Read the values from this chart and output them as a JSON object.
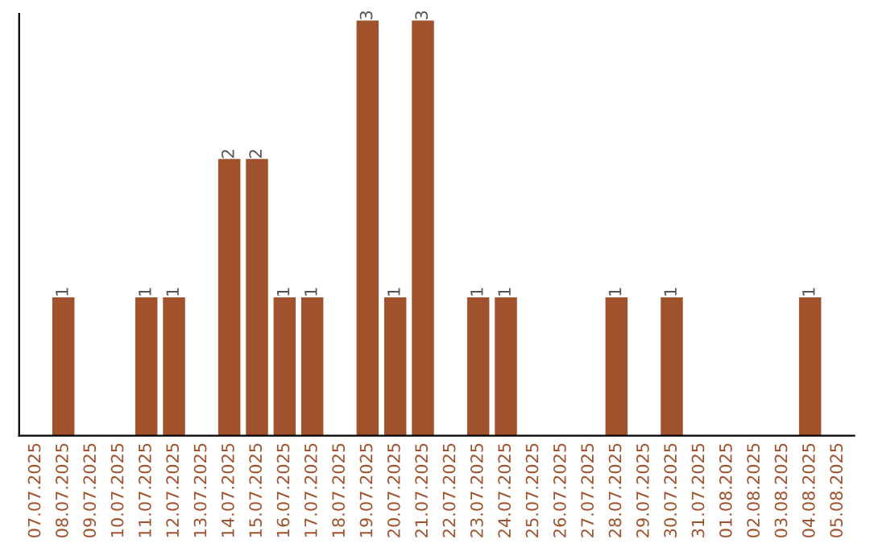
{
  "chart_data": {
    "type": "bar",
    "categories": [
      "07.07.2025",
      "08.07.2025",
      "09.07.2025",
      "10.07.2025",
      "11.07.2025",
      "12.07.2025",
      "13.07.2025",
      "14.07.2025",
      "15.07.2025",
      "16.07.2025",
      "17.07.2025",
      "18.07.2025",
      "19.07.2025",
      "20.07.2025",
      "21.07.2025",
      "22.07.2025",
      "23.07.2025",
      "24.07.2025",
      "25.07.2025",
      "26.07.2025",
      "27.07.2025",
      "28.07.2025",
      "29.07.2025",
      "30.07.2025",
      "31.07.2025",
      "01.08.2025",
      "02.08.2025",
      "03.08.2025",
      "04.08.2025",
      "05.08.2025"
    ],
    "values": [
      null,
      1,
      null,
      null,
      1,
      1,
      null,
      2,
      2,
      1,
      1,
      null,
      3,
      1,
      3,
      null,
      1,
      1,
      null,
      null,
      null,
      1,
      null,
      1,
      null,
      null,
      null,
      null,
      1,
      null
    ],
    "value_labels": [
      null,
      "1",
      null,
      null,
      "1",
      "1",
      null,
      "2",
      "2",
      "1",
      "1",
      null,
      "3",
      "1",
      "3",
      null,
      "1",
      "1",
      null,
      null,
      null,
      "1",
      null,
      "1",
      null,
      null,
      null,
      null,
      "1",
      null
    ],
    "color": "#a0522d",
    "ylim": [
      0,
      3.05
    ],
    "tick_labels": "x",
    "grid": false,
    "legend": false
  }
}
